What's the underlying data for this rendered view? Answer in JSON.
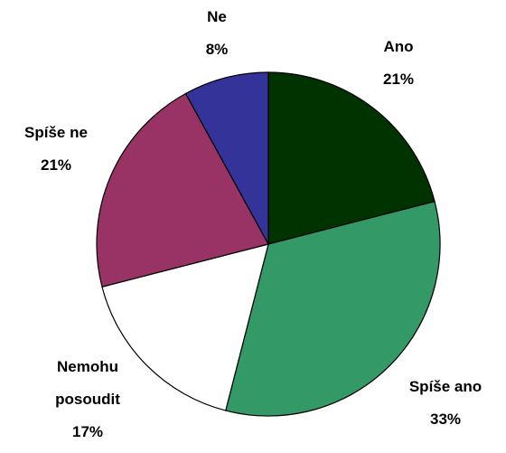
{
  "chart_data": {
    "type": "pie",
    "categories": [
      "Ano",
      "Spíše ano",
      "Nemohu posoudit",
      "Spíše ne",
      "Ne"
    ],
    "values": [
      21,
      33,
      17,
      21,
      8
    ],
    "value_labels": [
      "21%",
      "33%",
      "17%",
      "21%",
      "8%"
    ],
    "colors": [
      "#003300",
      "#339966",
      "#ffffff",
      "#993366",
      "#333399"
    ]
  }
}
